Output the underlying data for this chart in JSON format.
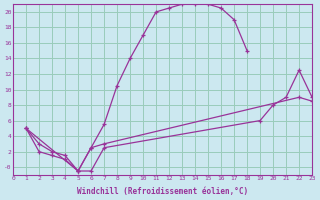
{
  "xlabel": "Windchill (Refroidissement éolien,°C)",
  "bg_color": "#cce8f0",
  "line_color": "#993399",
  "grid_color": "#99ccbb",
  "xlim": [
    0,
    23
  ],
  "ylim": [
    -1,
    21
  ],
  "xticks": [
    0,
    1,
    2,
    3,
    4,
    5,
    6,
    7,
    8,
    9,
    10,
    11,
    12,
    13,
    14,
    15,
    16,
    17,
    18,
    19,
    20,
    21,
    22,
    23
  ],
  "yticks": [
    0,
    2,
    4,
    6,
    8,
    10,
    12,
    14,
    16,
    18,
    20
  ],
  "ytick_labels": [
    "-0",
    "2",
    "4",
    "6",
    "8",
    "10",
    "12",
    "14",
    "16",
    "18",
    "20"
  ],
  "curve1_x": [
    1,
    2,
    3,
    4,
    5,
    6,
    7,
    8,
    9,
    10,
    11,
    12,
    13,
    14,
    15,
    16,
    17,
    18
  ],
  "curve1_y": [
    5,
    3,
    2,
    1.5,
    -0.5,
    2.5,
    5.5,
    10.5,
    14,
    17,
    20,
    20.5,
    21,
    21,
    21,
    20.5,
    19,
    15
  ],
  "curve2_x": [
    1,
    2,
    3,
    4,
    5,
    6,
    7,
    19,
    20,
    21,
    22,
    23
  ],
  "curve2_y": [
    5,
    2,
    1.5,
    1,
    -0.5,
    -0.5,
    2.5,
    6,
    8,
    9,
    12.5,
    9
  ],
  "curve3_x": [
    1,
    5,
    6,
    7,
    22,
    23
  ],
  "curve3_y": [
    5,
    -0.5,
    2.5,
    3,
    9,
    8.5
  ]
}
